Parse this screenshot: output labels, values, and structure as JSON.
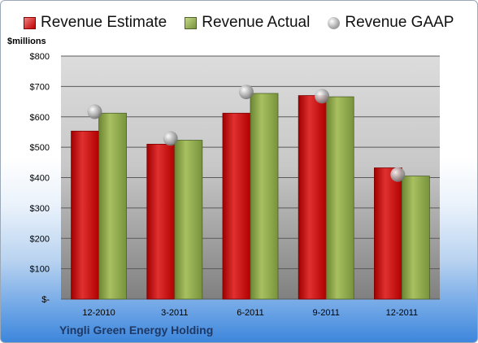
{
  "chart_data": {
    "type": "bar",
    "title": "",
    "xlabel": "",
    "ylabel": "$millions",
    "ylim": [
      0,
      800
    ],
    "yticks": [
      0,
      100,
      200,
      300,
      400,
      500,
      600,
      700,
      800
    ],
    "ytick_labels": [
      "$-",
      "$100",
      "$200",
      "$300",
      "$400",
      "$500",
      "$600",
      "$700",
      "$800"
    ],
    "categories": [
      "12-2010",
      "3-2011",
      "6-2011",
      "9-2011",
      "12-2011"
    ],
    "series": [
      {
        "name": "Revenue Estimate",
        "kind": "bar",
        "color": "#c00000",
        "values": [
          553,
          510,
          612,
          670,
          432
        ]
      },
      {
        "name": "Revenue Actual",
        "kind": "bar",
        "color": "#77933c",
        "values": [
          612,
          523,
          677,
          666,
          405
        ]
      },
      {
        "name": "Revenue GAAP",
        "kind": "marker",
        "color": "#a6a6a6",
        "values": [
          617,
          529,
          682,
          668,
          410
        ]
      }
    ],
    "legend_position": "top",
    "grid": true,
    "footer": "Yingli Green Energy Holding"
  }
}
